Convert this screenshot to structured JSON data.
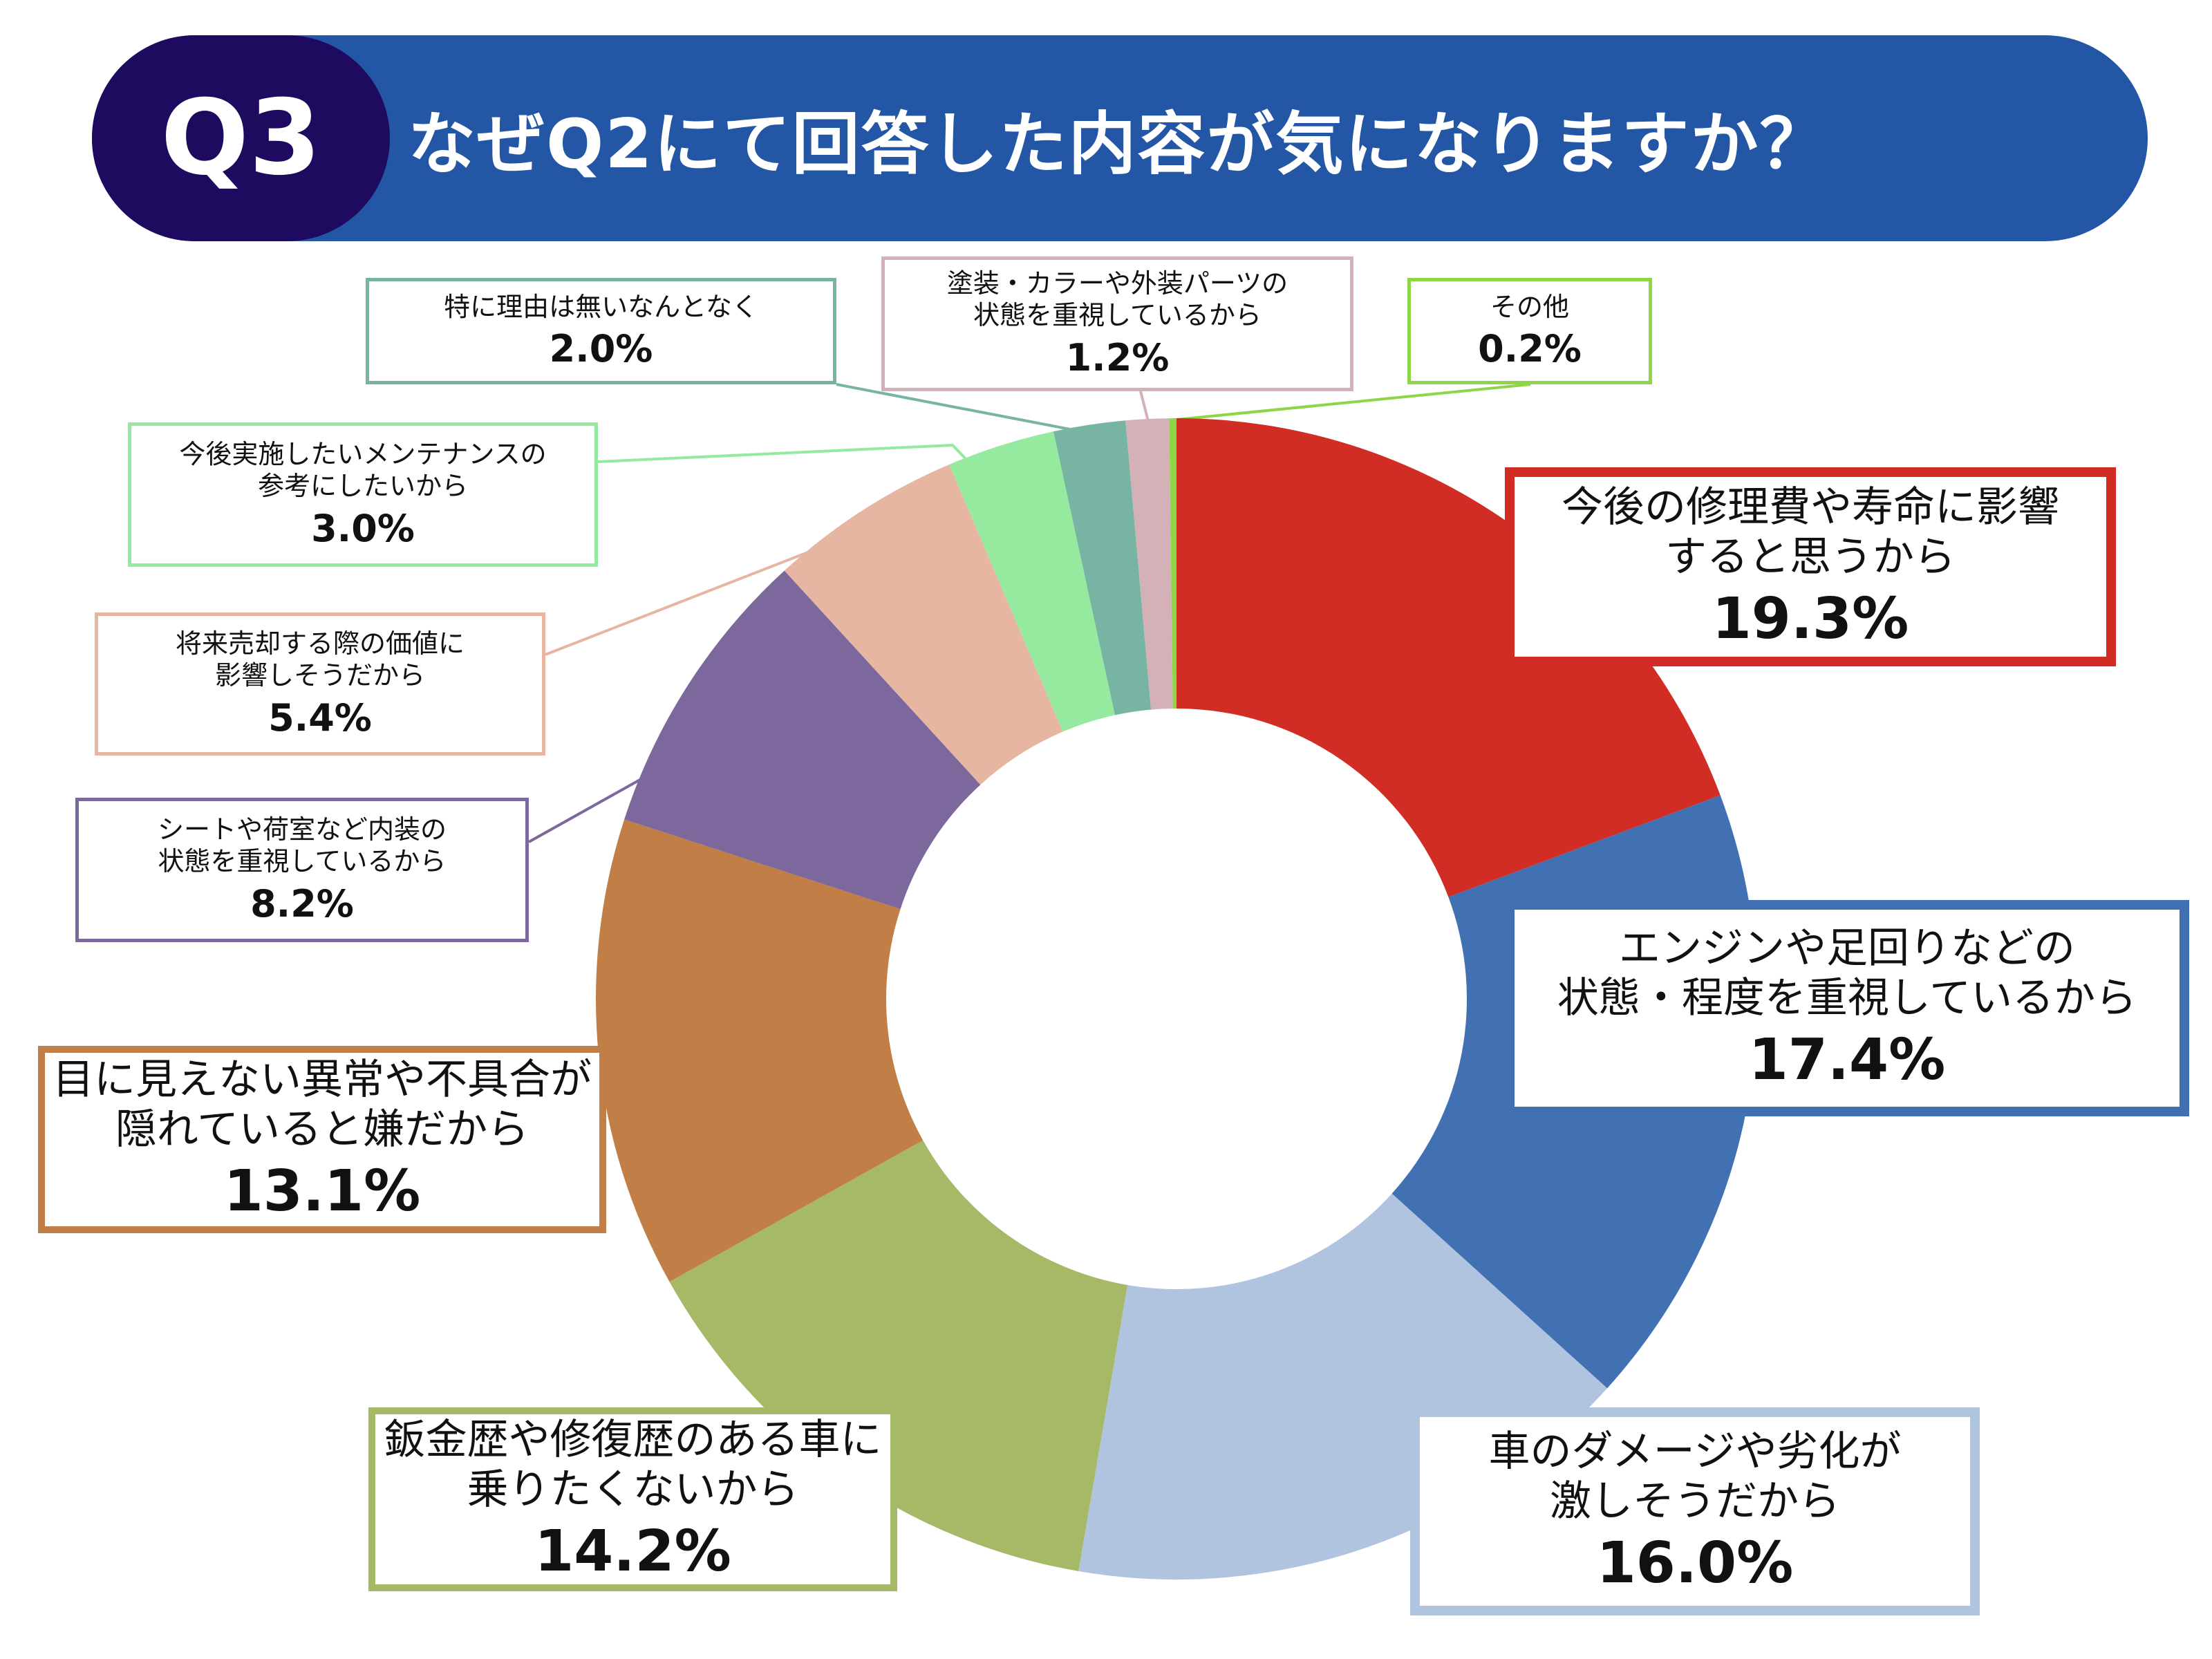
{
  "header": {
    "badge": "Q3",
    "title": "なぜQ2にて回答した内容が気になりますか？"
  },
  "chart_data": {
    "type": "pie",
    "variant": "donut",
    "start": "top",
    "direction": "clockwise",
    "categories": [
      "今後の修理費や寿命に影響\nすると思うから",
      "エンジンや足回りなどの\n状態・程度を重視しているから",
      "車のダメージや劣化が\n激しそうだから",
      "鈑金歴や修復歴のある車に\n乗りたくないから",
      "目に見えない異常や不具合が\n隠れていると嫌だから",
      "シートや荷室など内装の\n状態を重視しているから",
      "将来売却する際の価値に\n影響しそうだから",
      "今後実施したいメンテナンスの\n参考にしたいから",
      "特に理由は無いなんとなく",
      "塗装・カラーや外装パーツの\n状態を重視しているから",
      "その他"
    ],
    "values": [
      19.3,
      17.4,
      16.0,
      14.2,
      13.1,
      8.2,
      5.4,
      3.0,
      2.0,
      1.2,
      0.2
    ],
    "labels": [
      "19.3%",
      "17.4%",
      "16.0%",
      "14.2%",
      "13.1%",
      "8.2%",
      "5.4%",
      "3.0%",
      "2.0%",
      "1.2%",
      "0.2%"
    ],
    "colors": [
      "#d12d24",
      "#4170b3",
      "#b0c4e0",
      "#a5b967",
      "#c17e46",
      "#7d689d",
      "#e7b6a2",
      "#96ea9f",
      "#78b4a4",
      "#d4b1b7",
      "#8ed646"
    ]
  }
}
